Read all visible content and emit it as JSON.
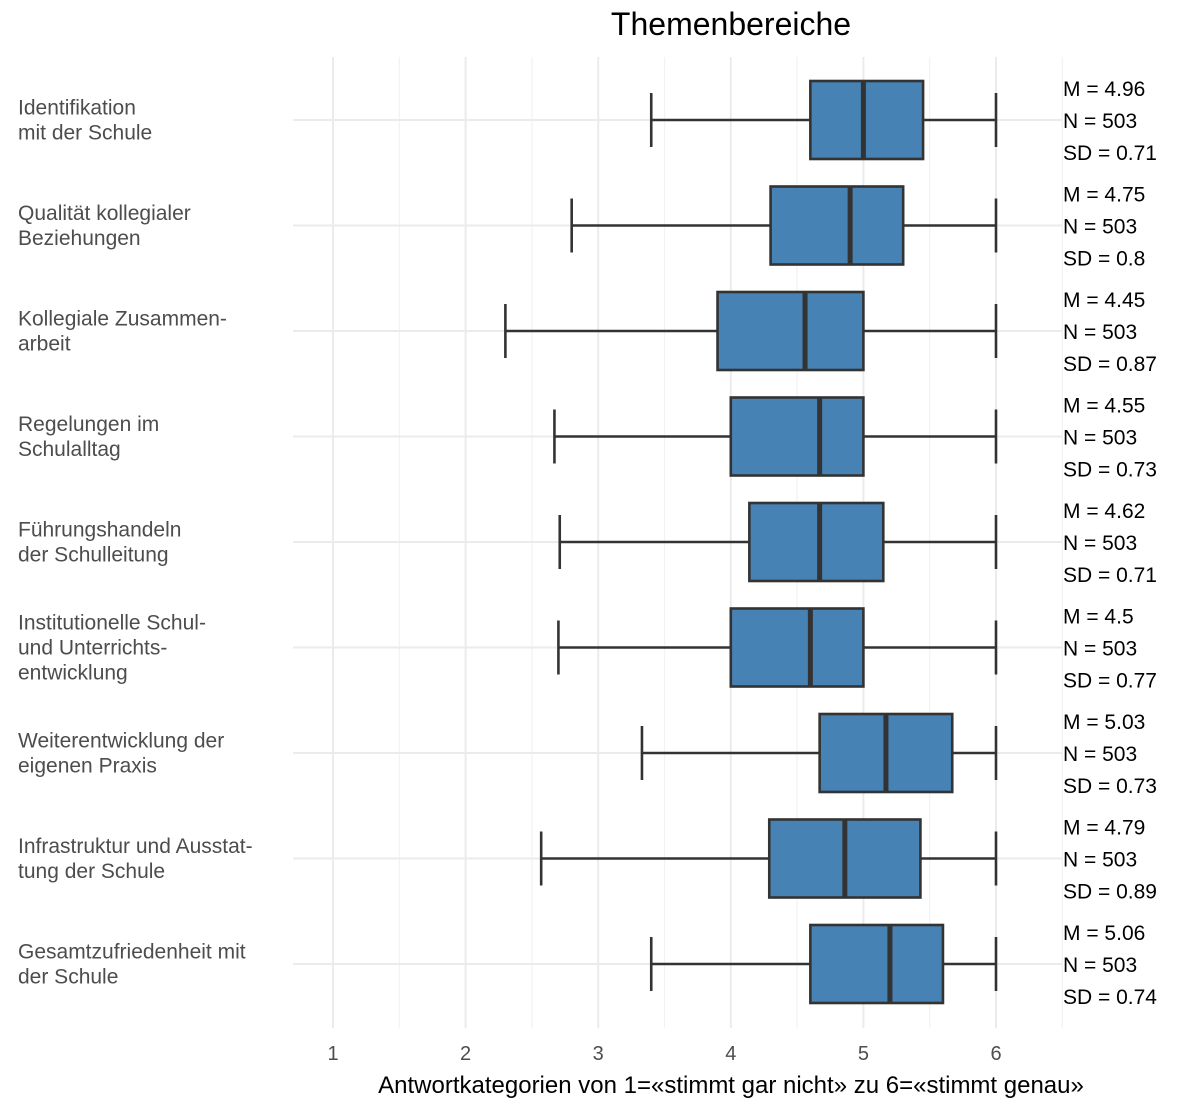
{
  "chart_data": {
    "type": "boxplot",
    "title": "Themenbereiche",
    "xlabel": "Antwortkategorien von 1=«stimmt gar nicht» zu 6=«stimmt genau»",
    "xlim": [
      0.7,
      6.5
    ],
    "xticks": [
      1,
      2,
      3,
      4,
      5,
      6
    ],
    "grid": true,
    "box_color": "#4682B4",
    "line_color": "#333333",
    "categories": [
      {
        "label_lines": [
          "Identifikation",
          "mit der Schule"
        ],
        "whisker_low": 3.4,
        "q1": 4.6,
        "median": 5.0,
        "q3": 5.45,
        "whisker_high": 6.0,
        "stats": [
          "M = 4.96",
          "N = 503",
          "SD = 0.71"
        ]
      },
      {
        "label_lines": [
          "Qualität kollegialer",
          "Beziehungen"
        ],
        "whisker_low": 2.8,
        "q1": 4.3,
        "median": 4.9,
        "q3": 5.3,
        "whisker_high": 6.0,
        "stats": [
          "M = 4.75",
          "N = 503",
          "SD = 0.8"
        ]
      },
      {
        "label_lines": [
          "Kollegiale Zusammen-",
          "arbeit"
        ],
        "whisker_low": 2.3,
        "q1": 3.9,
        "median": 4.56,
        "q3": 5.0,
        "whisker_high": 6.0,
        "stats": [
          "M = 4.45",
          "N = 503",
          "SD = 0.87"
        ]
      },
      {
        "label_lines": [
          "Regelungen im",
          "Schulalltag"
        ],
        "whisker_low": 2.67,
        "q1": 4.0,
        "median": 4.67,
        "q3": 5.0,
        "whisker_high": 6.0,
        "stats": [
          "M = 4.55",
          "N = 503",
          "SD = 0.73"
        ]
      },
      {
        "label_lines": [
          "Führungshandeln",
          "der Schulleitung"
        ],
        "whisker_low": 2.71,
        "q1": 4.14,
        "median": 4.67,
        "q3": 5.15,
        "whisker_high": 6.0,
        "stats": [
          "M = 4.62",
          "N = 503",
          "SD = 0.71"
        ]
      },
      {
        "label_lines": [
          "Institutionelle Schul-",
          "und Unterrichts-",
          "entwicklung"
        ],
        "whisker_low": 2.7,
        "q1": 4.0,
        "median": 4.6,
        "q3": 5.0,
        "whisker_high": 6.0,
        "stats": [
          "M = 4.5",
          "N = 503",
          "SD = 0.77"
        ]
      },
      {
        "label_lines": [
          "Weiterentwicklung der",
          "eigenen Praxis"
        ],
        "whisker_low": 3.33,
        "q1": 4.67,
        "median": 5.17,
        "q3": 5.67,
        "whisker_high": 6.0,
        "stats": [
          "M = 5.03",
          "N = 503",
          "SD = 0.73"
        ]
      },
      {
        "label_lines": [
          "Infrastruktur und Ausstat-",
          "tung der Schule"
        ],
        "whisker_low": 2.57,
        "q1": 4.29,
        "median": 4.86,
        "q3": 5.43,
        "whisker_high": 6.0,
        "stats": [
          "M = 4.79",
          "N = 503",
          "SD = 0.89"
        ]
      },
      {
        "label_lines": [
          "Gesamtzufriedenheit mit",
          "der Schule"
        ],
        "whisker_low": 3.4,
        "q1": 4.6,
        "median": 5.2,
        "q3": 5.6,
        "whisker_high": 6.0,
        "stats": [
          "M = 5.06",
          "N = 503",
          "SD = 0.74"
        ]
      }
    ]
  }
}
